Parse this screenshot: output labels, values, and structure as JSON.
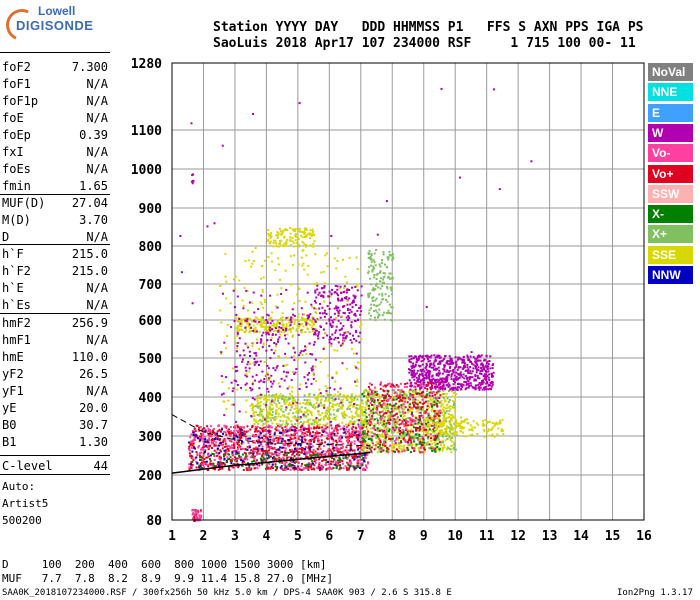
{
  "logo": {
    "line1": "Lowell",
    "line2": "DIGISONDE"
  },
  "header": {
    "row1": "Station YYYY DAY   DDD HHMMSS P1   FFS S AXN PPS IGA PS",
    "row2": "SaoLuis 2018 Apr17 107 234000 RSF     1 715 100 00- 11"
  },
  "params": [
    {
      "k": "foF2",
      "v": "7.300"
    },
    {
      "k": "foF1",
      "v": "N/A"
    },
    {
      "k": "foF1p",
      "v": "N/A"
    },
    {
      "k": "foE",
      "v": "N/A"
    },
    {
      "k": "foEp",
      "v": "0.39"
    },
    {
      "k": "fxI",
      "v": "N/A"
    },
    {
      "k": "foEs",
      "v": "N/A"
    },
    {
      "k": "fmin",
      "v": "1.65"
    },
    {
      "k": "MUF(D)",
      "v": "27.04"
    },
    {
      "k": "M(D)",
      "v": "3.70"
    },
    {
      "k": "D",
      "v": "N/A"
    },
    {
      "k": "h`F",
      "v": "215.0"
    },
    {
      "k": "h`F2",
      "v": "215.0"
    },
    {
      "k": "h`E",
      "v": "N/A"
    },
    {
      "k": "h`Es",
      "v": "N/A"
    },
    {
      "k": "hmF2",
      "v": "256.9"
    },
    {
      "k": "hmF1",
      "v": "N/A"
    },
    {
      "k": "hmE",
      "v": "110.0"
    },
    {
      "k": "yF2",
      "v": "26.5"
    },
    {
      "k": "yF1",
      "v": "N/A"
    },
    {
      "k": "yE",
      "v": "20.0"
    },
    {
      "k": "B0",
      "v": "30.7"
    },
    {
      "k": "B1",
      "v": "1.30"
    },
    {
      "k": "C-level",
      "v": "44"
    }
  ],
  "autoscale": {
    "l1": "Auto:",
    "l2": "Artist5",
    "l3": "500200"
  },
  "footer": {
    "d_row": "D     100  200  400  600  800 1000 1500 3000 [km]",
    "muf_row": "MUF   7.7  7.8  8.2  8.9  9.9 11.4 15.8 27.0 [MHz]",
    "file_row": "SAA0K_2018107234000.RSF / 300fx256h 50 kHz 5.0 km / DPS-4 SAA0K 903 / 2.6 S 315.8 E",
    "version": "Ion2Png 1.3.17"
  },
  "legend": [
    {
      "label": "NoVal",
      "color": "#808080"
    },
    {
      "label": "NNE",
      "color": "#00e0e0"
    },
    {
      "label": "E",
      "color": "#40a0ff"
    },
    {
      "label": "W",
      "color": "#b000b0"
    },
    {
      "label": "Vo-",
      "color": "#ff40a0"
    },
    {
      "label": "Vo+",
      "color": "#e00020"
    },
    {
      "label": "SSW",
      "color": "#ffb0b0"
    },
    {
      "label": "X-",
      "color": "#008000"
    },
    {
      "label": "X+",
      "color": "#80c060"
    },
    {
      "label": "SSE",
      "color": "#d8d800"
    },
    {
      "label": "NNW",
      "color": "#0000c0"
    }
  ],
  "chart_data": {
    "type": "scatter",
    "title": "",
    "xlabel": "",
    "ylabel": "",
    "xlim": [
      1,
      16
    ],
    "ylim": [
      80,
      1280
    ],
    "x_ticks": [
      "1",
      "2",
      "3",
      "4",
      "5",
      "6",
      "7",
      "8",
      "9",
      "10",
      "11",
      "12",
      "13",
      "14",
      "15",
      "16"
    ],
    "y_ticks": [
      {
        "label": "80",
        "v": 80
      },
      {
        "label": "200",
        "v": 200
      },
      {
        "label": "300",
        "v": 300
      },
      {
        "label": "400",
        "v": 400
      },
      {
        "label": "500",
        "v": 500
      },
      {
        "label": "600",
        "v": 600
      },
      {
        "label": "700",
        "v": 700
      },
      {
        "label": "800",
        "v": 800
      },
      {
        "label": "900",
        "v": 900
      },
      {
        "label": "1000",
        "v": 1000
      },
      {
        "label": "1100",
        "v": 1100
      },
      {
        "label": "1280",
        "v": 1280
      }
    ],
    "clusters": [
      {
        "series": "Vo+",
        "x": [
          1.5,
          7.2
        ],
        "y": [
          215,
          330
        ],
        "n": 900
      },
      {
        "series": "Vo-",
        "x": [
          1.5,
          7.2
        ],
        "y": [
          215,
          330
        ],
        "n": 500
      },
      {
        "series": "NNW",
        "x": [
          1.5,
          7.2
        ],
        "y": [
          220,
          320
        ],
        "n": 150
      },
      {
        "series": "X+",
        "x": [
          3.5,
          7.0
        ],
        "y": [
          330,
          410
        ],
        "n": 200
      },
      {
        "series": "SSE",
        "x": [
          3.5,
          7.0
        ],
        "y": [
          330,
          410
        ],
        "n": 300
      },
      {
        "series": "SSE",
        "x": [
          7.0,
          10.0
        ],
        "y": [
          260,
          420
        ],
        "n": 600
      },
      {
        "series": "X+",
        "x": [
          7.0,
          10.0
        ],
        "y": [
          260,
          420
        ],
        "n": 250
      },
      {
        "series": "X-",
        "x": [
          7.0,
          9.5
        ],
        "y": [
          260,
          420
        ],
        "n": 150
      },
      {
        "series": "W",
        "x": [
          8.5,
          11.2
        ],
        "y": [
          420,
          510
        ],
        "n": 600
      },
      {
        "series": "Vo+",
        "x": [
          7.2,
          9.5
        ],
        "y": [
          260,
          440
        ],
        "n": 250
      },
      {
        "series": "Vo-",
        "x": [
          7.2,
          9.5
        ],
        "y": [
          260,
          440
        ],
        "n": 150
      },
      {
        "series": "SSE",
        "x": [
          3.0,
          5.5
        ],
        "y": [
          570,
          610
        ],
        "n": 200
      },
      {
        "series": "W",
        "x": [
          3.0,
          5.5
        ],
        "y": [
          420,
          620
        ],
        "n": 150
      },
      {
        "series": "SSE",
        "x": [
          4.0,
          5.5
        ],
        "y": [
          800,
          850
        ],
        "n": 120
      },
      {
        "series": "W",
        "x": [
          5.5,
          7.0
        ],
        "y": [
          540,
          700
        ],
        "n": 180
      },
      {
        "series": "X+",
        "x": [
          7.2,
          8.0
        ],
        "y": [
          600,
          800
        ],
        "n": 150
      },
      {
        "series": "SSE",
        "x": [
          9.0,
          11.5
        ],
        "y": [
          300,
          350
        ],
        "n": 150
      },
      {
        "series": "SSE",
        "x": [
          2.5,
          7.0
        ],
        "y": [
          360,
          800
        ],
        "n": 250
      },
      {
        "series": "W",
        "x": [
          2.5,
          7.0
        ],
        "y": [
          330,
          700
        ],
        "n": 150
      },
      {
        "series": "Vo+",
        "x": [
          1.6,
          1.9
        ],
        "y": [
          80,
          110
        ],
        "n": 30
      },
      {
        "series": "Vo-",
        "x": [
          1.6,
          1.9
        ],
        "y": [
          80,
          110
        ],
        "n": 30
      },
      {
        "series": "X-",
        "x": [
          1.6,
          7.2
        ],
        "y": [
          220,
          260
        ],
        "n": 100
      },
      {
        "series": "W",
        "x": [
          1.6,
          1.7
        ],
        "y": [
          950,
          1000
        ],
        "n": 6
      },
      {
        "series": "W",
        "x": [
          1.0,
          13.0
        ],
        "y": [
          300,
          1280
        ],
        "n": 25
      }
    ],
    "trace": [
      {
        "x": 1.0,
        "y": 205
      },
      {
        "x": 2.0,
        "y": 215
      },
      {
        "x": 3.0,
        "y": 225
      },
      {
        "x": 4.0,
        "y": 232
      },
      {
        "x": 5.0,
        "y": 240
      },
      {
        "x": 6.0,
        "y": 248
      },
      {
        "x": 7.0,
        "y": 255
      },
      {
        "x": 7.3,
        "y": 258
      }
    ],
    "dashed_trace": [
      {
        "x": 1.0,
        "y": 355
      },
      {
        "x": 2.0,
        "y": 310
      },
      {
        "x": 3.0,
        "y": 290
      },
      {
        "x": 4.0,
        "y": 283
      },
      {
        "x": 5.0,
        "y": 280
      },
      {
        "x": 6.0,
        "y": 278
      },
      {
        "x": 7.3,
        "y": 275
      }
    ]
  }
}
